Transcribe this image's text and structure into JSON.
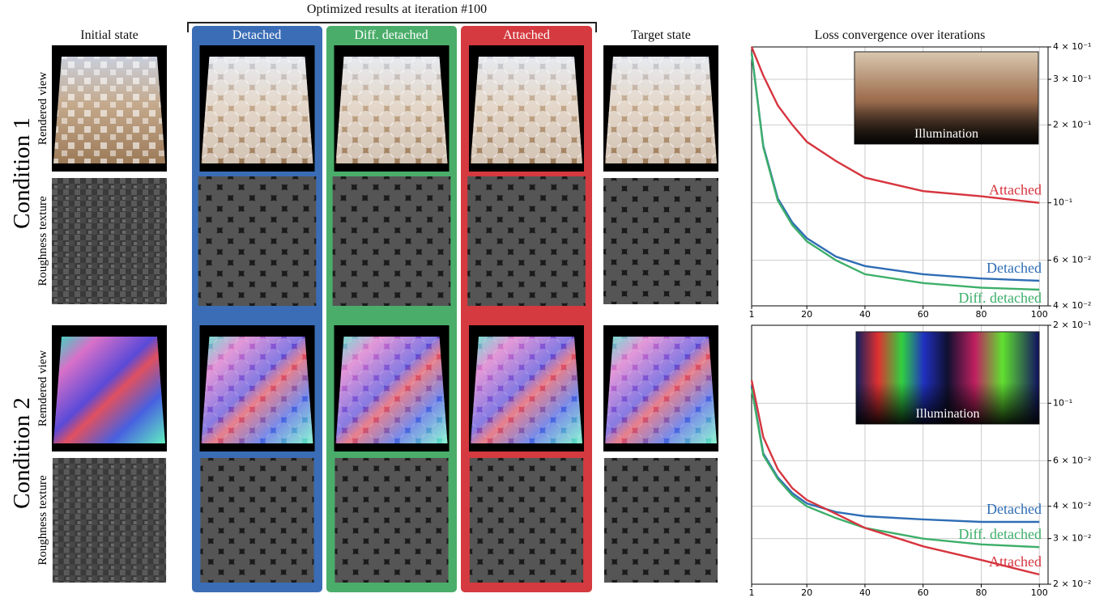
{
  "figure": {
    "header": "Optimized results at iteration #100",
    "columns": [
      "Initial state",
      "Detached",
      "Diff. detached",
      "Attached",
      "Target state"
    ],
    "conditions": [
      "Condition 1",
      "Condition 2"
    ],
    "row_labels": [
      "Rendered view",
      "Roughness texture",
      "Remdered view",
      "Roughness texture"
    ]
  },
  "chart_data": [
    {
      "type": "line",
      "title": "Loss convergence over iterations",
      "inset_label": "Illumination",
      "log_y": true,
      "grid": true,
      "x": [
        1,
        5,
        10,
        15,
        20,
        30,
        40,
        60,
        80,
        100
      ],
      "series": [
        {
          "name": "Detached",
          "color": "#2f6db5",
          "values": [
            0.38,
            0.166,
            0.104,
            0.084,
            0.073,
            0.062,
            0.057,
            0.053,
            0.051,
            0.05
          ]
        },
        {
          "name": "Diff. detached",
          "color": "#3daf6a",
          "values": [
            0.38,
            0.164,
            0.102,
            0.082,
            0.071,
            0.06,
            0.053,
            0.049,
            0.047,
            0.0462
          ]
        },
        {
          "name": "Attached",
          "color": "#d6353f",
          "values": [
            0.4,
            0.31,
            0.238,
            0.2,
            0.172,
            0.145,
            0.125,
            0.111,
            0.106,
            0.1
          ]
        }
      ],
      "xlim": [
        1,
        103
      ],
      "xticks": [
        1,
        20,
        40,
        60,
        80,
        100
      ],
      "ylim": [
        0.04,
        0.4
      ],
      "yticks": [
        {
          "value": 0.4,
          "label": "4 × 10⁻¹"
        },
        {
          "value": 0.3,
          "label": "3 × 10⁻¹"
        },
        {
          "value": 0.2,
          "label": "2 × 10⁻¹"
        },
        {
          "value": 0.1,
          "label": "10⁻¹"
        },
        {
          "value": 0.06,
          "label": "6 × 10⁻²"
        },
        {
          "value": 0.04,
          "label": "4 × 10⁻²"
        }
      ]
    },
    {
      "type": "line",
      "inset_label": "Illumination",
      "log_y": true,
      "grid": true,
      "x": [
        1,
        5,
        10,
        15,
        20,
        30,
        40,
        60,
        80,
        100
      ],
      "series": [
        {
          "name": "Detached",
          "color": "#2f6db5",
          "values": [
            0.1158,
            0.064,
            0.0517,
            0.045,
            0.041,
            0.038,
            0.0366,
            0.0356,
            0.0348,
            0.0348
          ]
        },
        {
          "name": "Diff. detached",
          "color": "#3daf6a",
          "values": [
            0.114,
            0.063,
            0.051,
            0.044,
            0.04,
            0.036,
            0.033,
            0.03,
            0.0285,
            0.0278
          ]
        },
        {
          "name": "Attached",
          "color": "#d6353f",
          "values": [
            0.1226,
            0.074,
            0.0556,
            0.047,
            0.0423,
            0.0374,
            0.033,
            0.028,
            0.0248,
            0.0218
          ]
        }
      ],
      "xlim": [
        1,
        103
      ],
      "xticks": [
        1,
        20,
        40,
        60,
        80,
        100
      ],
      "ylim": [
        0.02,
        0.2
      ],
      "yticks": [
        {
          "value": 0.2,
          "label": "2 × 10⁻¹"
        },
        {
          "value": 0.1,
          "label": "10⁻¹"
        },
        {
          "value": 0.06,
          "label": "6 × 10⁻²"
        },
        {
          "value": 0.04,
          "label": "4 × 10⁻²"
        },
        {
          "value": 0.03,
          "label": "3 × 10⁻²"
        },
        {
          "value": 0.02,
          "label": "2 × 10⁻²"
        }
      ]
    }
  ]
}
